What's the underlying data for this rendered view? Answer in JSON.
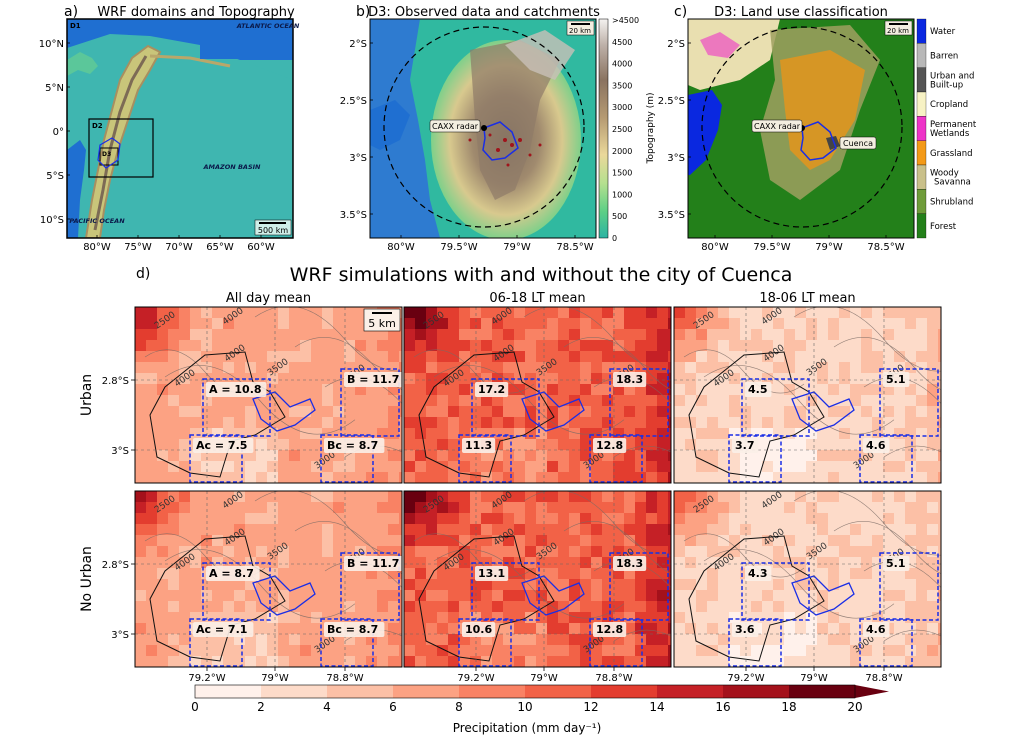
{
  "top_panels": [
    {
      "letter": "a)",
      "title": "WRF domains and Topography",
      "labels": {
        "d1": "D1",
        "d2": "D2",
        "d3": "D3",
        "atlantic": "ATLANTIC OCEAN",
        "pacific": "PACIFIC OCEAN",
        "amazon": "AMAZON BASIN",
        "scale": "500 km"
      },
      "yticks": [
        "10°N",
        "5°N",
        "0°",
        "5°S",
        "10°S"
      ],
      "xticks": [
        "80°W",
        "75°W",
        "70°W",
        "65°W",
        "60°W"
      ]
    },
    {
      "letter": "b)",
      "title": "D3: Observed data and catchments",
      "labels": {
        "radar": "CAXX radar",
        "scale": "20 km"
      },
      "yticks": [
        "2°S",
        "2.5°S",
        "3°S",
        "3.5°S"
      ],
      "xticks": [
        "80°W",
        "79.5°W",
        "79°W",
        "78.5°W"
      ],
      "colorbar": {
        "label": "Topography (m)",
        "ticks": [
          ">4500",
          "4500",
          "4000",
          "3500",
          "3000",
          "2500",
          "2000",
          "1500",
          "1000",
          "500",
          "0"
        ]
      }
    },
    {
      "letter": "c)",
      "title": "D3: Land use classification",
      "labels": {
        "radar": "CAXX radar",
        "city": "Cuenca",
        "scale": "20 km"
      },
      "yticks": [
        "2°S",
        "2.5°S",
        "3°S",
        "3.5°S"
      ],
      "xticks": [
        "80°W",
        "79.5°W",
        "79°W",
        "78.5°W"
      ],
      "legend": [
        {
          "label": "Water",
          "color": "#0a28e0"
        },
        {
          "label": "Barren",
          "color": "#b8b8b8"
        },
        {
          "label": "Urban and Built-up",
          "color": "#555555"
        },
        {
          "label": "Cropland",
          "color": "#f7f2c4"
        },
        {
          "label": "Permanent Wetlands",
          "color": "#ee34c8"
        },
        {
          "label": "Grassland",
          "color": "#f39a18"
        },
        {
          "label": "Woody Savanna",
          "color": "#c9c08a"
        },
        {
          "label": "Shrubland",
          "color": "#6f9c3a"
        },
        {
          "label": "Forest",
          "color": "#23801a"
        }
      ]
    }
  ],
  "section_d": {
    "letter": "d)",
    "title": "WRF simulations with and without the city of Cuenca",
    "col_titles": [
      "All day mean",
      "06-18 LT mean",
      "18-06 LT mean"
    ],
    "row_labels": [
      "Urban",
      "No Urban"
    ],
    "yticks": [
      "2.8°S",
      "3°S"
    ],
    "xticks": [
      "79.2°W",
      "79°W",
      "78.8°W"
    ],
    "scale_label": "5 km",
    "contours": [
      "2500",
      "4000",
      "4000",
      "4000",
      "3500",
      "2500",
      "3000"
    ],
    "colorbar": {
      "label": "Precipitation (mm day⁻¹)",
      "ticks": [
        "0",
        "2",
        "4",
        "6",
        "8",
        "10",
        "12",
        "14",
        "16",
        "18",
        "20"
      ],
      "colors": [
        "#fff1eb",
        "#fddbc9",
        "#fcc0a6",
        "#fca283",
        "#f98264",
        "#f26247",
        "#e33d2f",
        "#c52026",
        "#a4111b",
        "#690010"
      ]
    }
  },
  "chart_data": [
    {
      "type": "heatmap",
      "title": "All day mean",
      "row": "Urban",
      "boxes": [
        {
          "name": "A",
          "value": 10.8
        },
        {
          "name": "B",
          "value": 11.7
        },
        {
          "name": "Ac",
          "value": 7.5
        },
        {
          "name": "Bc",
          "value": 8.7
        }
      ]
    },
    {
      "type": "heatmap",
      "title": "06-18 LT mean",
      "row": "Urban",
      "boxes": [
        {
          "name": "A",
          "value": 17.2
        },
        {
          "name": "B",
          "value": 18.3
        },
        {
          "name": "Ac",
          "value": 11.3
        },
        {
          "name": "Bc",
          "value": 12.8
        }
      ]
    },
    {
      "type": "heatmap",
      "title": "18-06 LT mean",
      "row": "Urban",
      "boxes": [
        {
          "name": "A",
          "value": 4.5
        },
        {
          "name": "B",
          "value": 5.1
        },
        {
          "name": "Ac",
          "value": 3.7
        },
        {
          "name": "Bc",
          "value": 4.6
        }
      ]
    },
    {
      "type": "heatmap",
      "title": "All day mean",
      "row": "No Urban",
      "boxes": [
        {
          "name": "A",
          "value": 8.7
        },
        {
          "name": "B",
          "value": 11.7
        },
        {
          "name": "Ac",
          "value": 7.1
        },
        {
          "name": "Bc",
          "value": 8.7
        }
      ]
    },
    {
      "type": "heatmap",
      "title": "06-18 LT mean",
      "row": "No Urban",
      "boxes": [
        {
          "name": "A",
          "value": 13.1
        },
        {
          "name": "B",
          "value": 18.3
        },
        {
          "name": "Ac",
          "value": 10.6
        },
        {
          "name": "Bc",
          "value": 12.8
        }
      ]
    },
    {
      "type": "heatmap",
      "title": "18-06 LT mean",
      "row": "No Urban",
      "boxes": [
        {
          "name": "A",
          "value": 4.3
        },
        {
          "name": "B",
          "value": 5.1
        },
        {
          "name": "Ac",
          "value": 3.6
        },
        {
          "name": "Bc",
          "value": 4.6
        }
      ]
    }
  ]
}
